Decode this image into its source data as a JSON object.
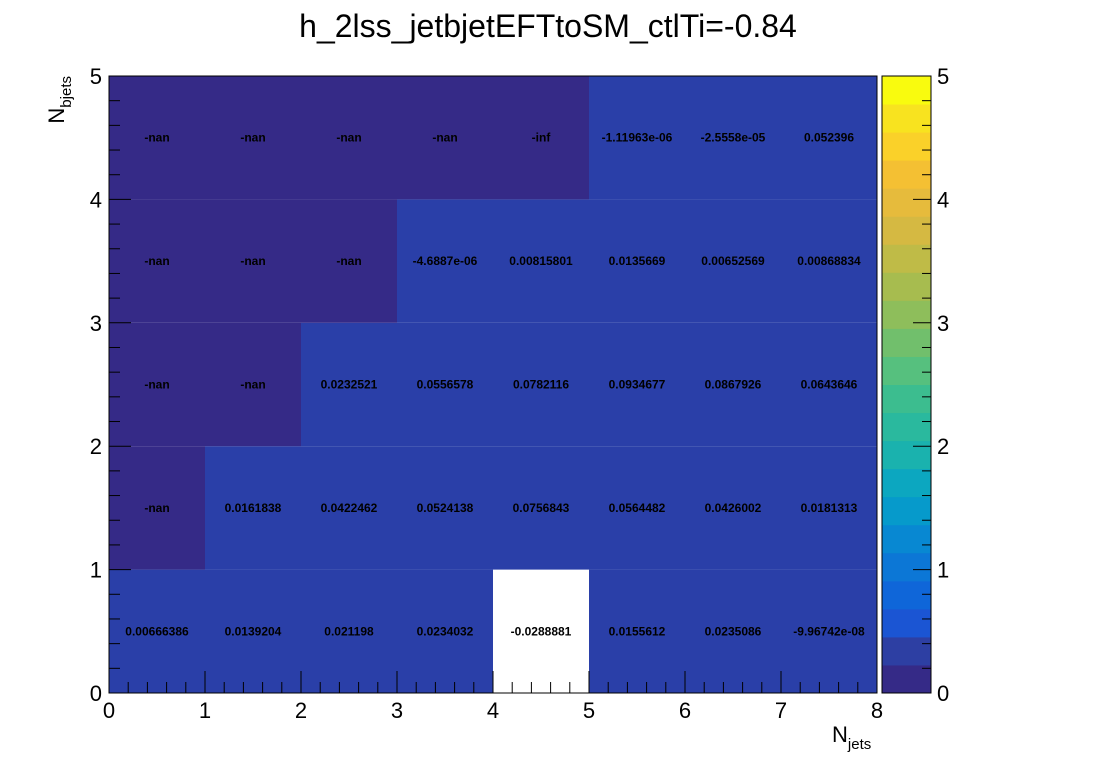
{
  "chart_data": {
    "type": "heatmap",
    "title": "h_2lss_jetbjetEFTtoSM_ctlTi=-0.84",
    "xlabel": "N",
    "xlabel_sub": "jets",
    "ylabel": "N",
    "ylabel_sub": "bjets",
    "x_edges": [
      0,
      1,
      2,
      3,
      4,
      5,
      6,
      7,
      8
    ],
    "y_edges": [
      0,
      1,
      2,
      3,
      4,
      5
    ],
    "xlim": [
      0,
      8
    ],
    "ylim": [
      0,
      5
    ],
    "x_ticks": [
      "0",
      "1",
      "2",
      "3",
      "4",
      "5",
      "6",
      "7",
      "8"
    ],
    "y_ticks": [
      "0",
      "1",
      "2",
      "3",
      "4",
      "5"
    ],
    "z_range": [
      0,
      5
    ],
    "colorbar_ticks": [
      "0",
      "1",
      "2",
      "3",
      "4",
      "5"
    ],
    "colorbar_colors": [
      "#352a87",
      "#2d3fa3",
      "#1b55d3",
      "#0f66d9",
      "#0c77d6",
      "#0888d2",
      "#069acb",
      "#0ca7c0",
      "#1ab2ae",
      "#2ab99e",
      "#3cbd8f",
      "#56c07e",
      "#71bf6c",
      "#8ebe5b",
      "#a7bc4f",
      "#bfbb47",
      "#d5b942",
      "#e6bb3c",
      "#f4c033",
      "#fad129",
      "#f8e31f",
      "#f9fb0e"
    ],
    "cells": [
      {
        "x": 0,
        "y": 0,
        "label": "0.00666386",
        "value": 0.00666386
      },
      {
        "x": 1,
        "y": 0,
        "label": "0.0139204",
        "value": 0.0139204
      },
      {
        "x": 2,
        "y": 0,
        "label": "0.021198",
        "value": 0.021198
      },
      {
        "x": 3,
        "y": 0,
        "label": "0.0234032",
        "value": 0.0234032
      },
      {
        "x": 4,
        "y": 0,
        "label": "-0.0288881",
        "value": -0.0288881
      },
      {
        "x": 5,
        "y": 0,
        "label": "0.0155612",
        "value": 0.0155612
      },
      {
        "x": 6,
        "y": 0,
        "label": "0.0235086",
        "value": 0.0235086
      },
      {
        "x": 7,
        "y": 0,
        "label": "-9.96742e-08",
        "value": -9.96742e-08
      },
      {
        "x": 0,
        "y": 1,
        "label": "-nan",
        "value": null
      },
      {
        "x": 1,
        "y": 1,
        "label": "0.0161838",
        "value": 0.0161838
      },
      {
        "x": 2,
        "y": 1,
        "label": "0.0422462",
        "value": 0.0422462
      },
      {
        "x": 3,
        "y": 1,
        "label": "0.0524138",
        "value": 0.0524138
      },
      {
        "x": 4,
        "y": 1,
        "label": "0.0756843",
        "value": 0.0756843
      },
      {
        "x": 5,
        "y": 1,
        "label": "0.0564482",
        "value": 0.0564482
      },
      {
        "x": 6,
        "y": 1,
        "label": "0.0426002",
        "value": 0.0426002
      },
      {
        "x": 7,
        "y": 1,
        "label": "0.0181313",
        "value": 0.0181313
      },
      {
        "x": 0,
        "y": 2,
        "label": "-nan",
        "value": null
      },
      {
        "x": 1,
        "y": 2,
        "label": "-nan",
        "value": null
      },
      {
        "x": 2,
        "y": 2,
        "label": "0.0232521",
        "value": 0.0232521
      },
      {
        "x": 3,
        "y": 2,
        "label": "0.0556578",
        "value": 0.0556578
      },
      {
        "x": 4,
        "y": 2,
        "label": "0.0782116",
        "value": 0.0782116
      },
      {
        "x": 5,
        "y": 2,
        "label": "0.0934677",
        "value": 0.0934677
      },
      {
        "x": 6,
        "y": 2,
        "label": "0.0867926",
        "value": 0.0867926
      },
      {
        "x": 7,
        "y": 2,
        "label": "0.0643646",
        "value": 0.0643646
      },
      {
        "x": 0,
        "y": 3,
        "label": "-nan",
        "value": null
      },
      {
        "x": 1,
        "y": 3,
        "label": "-nan",
        "value": null
      },
      {
        "x": 2,
        "y": 3,
        "label": "-nan",
        "value": null
      },
      {
        "x": 3,
        "y": 3,
        "label": "-4.6887e-06",
        "value": -4.6887e-06
      },
      {
        "x": 4,
        "y": 3,
        "label": "0.00815801",
        "value": 0.00815801
      },
      {
        "x": 5,
        "y": 3,
        "label": "0.0135669",
        "value": 0.0135669
      },
      {
        "x": 6,
        "y": 3,
        "label": "0.00652569",
        "value": 0.00652569
      },
      {
        "x": 7,
        "y": 3,
        "label": "0.00868834",
        "value": 0.00868834
      },
      {
        "x": 0,
        "y": 4,
        "label": "-nan",
        "value": null
      },
      {
        "x": 1,
        "y": 4,
        "label": "-nan",
        "value": null
      },
      {
        "x": 2,
        "y": 4,
        "label": "-nan",
        "value": null
      },
      {
        "x": 3,
        "y": 4,
        "label": "-nan",
        "value": null
      },
      {
        "x": 4,
        "y": 4,
        "label": "-inf",
        "value": null
      },
      {
        "x": 5,
        "y": 4,
        "label": "-1.11963e-06",
        "value": -1.11963e-06
      },
      {
        "x": 6,
        "y": 4,
        "label": "-2.5558e-05",
        "value": -2.5558e-05
      },
      {
        "x": 7,
        "y": 4,
        "label": "0.052396",
        "value": 0.052396
      }
    ],
    "colors": {
      "nan_fill": "#352a87",
      "low_fill": "#2a3fa8",
      "negative_fill": "#ffffff"
    }
  }
}
